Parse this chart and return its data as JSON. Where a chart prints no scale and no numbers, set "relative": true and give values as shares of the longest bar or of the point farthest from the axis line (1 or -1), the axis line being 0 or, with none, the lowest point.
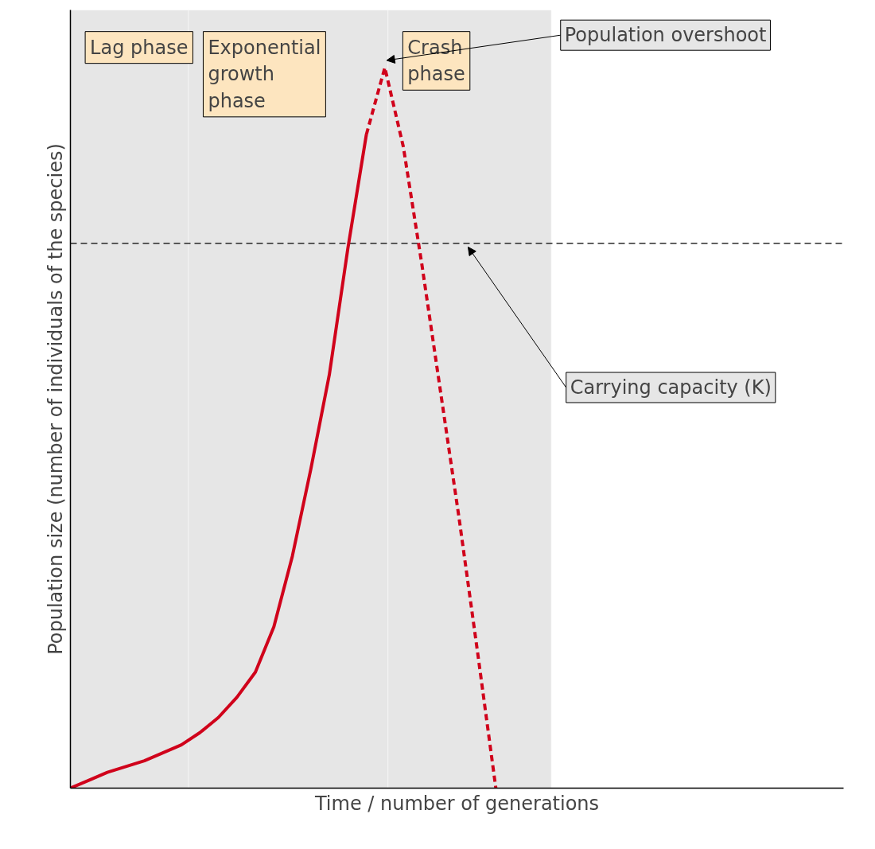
{
  "chart_data": {
    "type": "line",
    "relative": true,
    "xlabel": "Time / number of generations",
    "ylabel": "Population size (number of individuals of the species)",
    "categories": [
      null,
      null,
      null,
      null,
      null,
      null,
      null,
      null,
      null,
      null,
      null,
      null,
      null,
      null,
      null,
      null,
      null,
      null,
      null,
      null,
      null,
      null,
      null,
      null,
      null,
      null,
      null,
      null,
      null,
      null,
      null,
      null,
      null,
      null,
      null,
      null,
      null,
      null,
      null,
      null,
      null,
      null
    ],
    "series": [
      {
        "color": "#d0021b",
        "line_style": "solid",
        "values": [
          0,
          0.011,
          0.022,
          0.03,
          0.038,
          0.049,
          0.06,
          0.077,
          0.098,
          0.126,
          0.161,
          0.224,
          0.322,
          0.443,
          0.574,
          0.749,
          0.907,
          null,
          null,
          null,
          null,
          null,
          null,
          null,
          null,
          null,
          null,
          null,
          null,
          null,
          null,
          null,
          null,
          null,
          null,
          null,
          null,
          null,
          null,
          null,
          null,
          null
        ]
      },
      {
        "color": "#d0021b",
        "line_style": "dashed",
        "values": [
          null,
          null,
          null,
          null,
          null,
          null,
          null,
          null,
          null,
          null,
          null,
          null,
          null,
          null,
          null,
          null,
          0.907,
          1,
          0.89,
          0.727,
          0.552,
          0.377,
          0.191,
          0,
          null,
          null,
          null,
          null,
          null,
          null,
          null,
          null,
          null,
          null,
          null,
          null,
          null,
          null,
          null,
          null,
          null,
          null
        ]
      }
    ],
    "ref_lines": [
      {
        "axis": "y",
        "value": 0.756,
        "label": "Carrying capacity (K)",
        "color": "#000000",
        "line_style": "dashed"
      }
    ],
    "annotations": [
      "Lag phase",
      "Exponential growth phase",
      "Crash phase",
      "Population overshoot"
    ]
  }
}
